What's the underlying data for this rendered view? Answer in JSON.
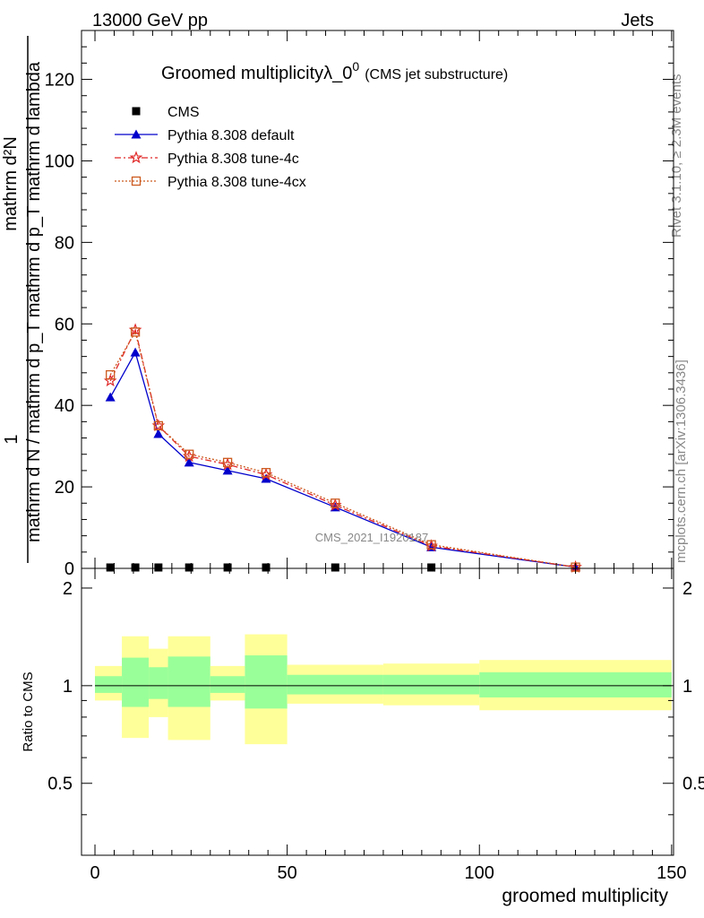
{
  "header": {
    "left": "13000 GeV pp",
    "right": "Jets"
  },
  "side_labels": {
    "rivet": "Rivet 3.1.10, ≥ 2.3M events",
    "mcplots": "mcplots.cern.ch [arXiv:1306.3436]"
  },
  "watermark": "CMS_2021_I1920187",
  "chart_data": [
    {
      "type": "line",
      "title": "Groomed multiplicityλ_0",
      "title_sup": "0",
      "subtitle": "(CMS jet substructure)",
      "ylabel_top": "1",
      "ylabel_den": "mathrm d N / mathrm d p_T mathrm d p_T mathrm d lambda",
      "ylabel_num": "mathrm d²N",
      "ylim": [
        0,
        132
      ],
      "xlim": [
        -3.5,
        150.5
      ],
      "yticks": [
        0,
        20,
        40,
        60,
        80,
        100,
        120
      ],
      "series": [
        {
          "name": "CMS",
          "color": "#000000",
          "marker": "square",
          "x": [
            4,
            10.5,
            16.5,
            24.5,
            34.5,
            44.5,
            62.5,
            87.5
          ],
          "y": [
            0.2,
            0.2,
            0.2,
            0.2,
            0.2,
            0.2,
            0.2,
            0.2
          ]
        },
        {
          "name": "Pythia 8.308 default",
          "color": "#0000cc",
          "marker": "triangle",
          "x": [
            4,
            10.5,
            16.5,
            24.5,
            34.5,
            44.5,
            62.5,
            87.5,
            125
          ],
          "y": [
            42,
            53,
            33,
            26,
            24,
            22,
            15,
            5.2,
            0.3
          ]
        },
        {
          "name": "Pythia 8.308 tune-4c",
          "color": "#e02828",
          "marker": "star",
          "x": [
            4,
            10.5,
            16.5,
            24.5,
            34.5,
            44.5,
            62.5,
            87.5,
            125
          ],
          "y": [
            46,
            58.5,
            35,
            27.5,
            25.5,
            23,
            15.5,
            5.5,
            0.3
          ]
        },
        {
          "name": "Pythia 8.308 tune-4cx",
          "color": "#cc5a1e",
          "marker": "open-square",
          "x": [
            4,
            10.5,
            16.5,
            24.5,
            34.5,
            44.5,
            62.5,
            87.5,
            125
          ],
          "y": [
            47.5,
            58,
            35,
            28,
            26,
            23.5,
            16,
            5.8,
            0.3
          ]
        }
      ]
    },
    {
      "type": "area",
      "ylabel": "Ratio to CMS",
      "xlabel": "groomed multiplicity",
      "ylim": [
        0.3,
        2.3
      ],
      "xlim": [
        -3.5,
        150.5
      ],
      "xticks": [
        0,
        50,
        100,
        150
      ],
      "yticks": [
        0.5,
        1,
        2
      ],
      "bands": {
        "bins": [
          [
            0,
            7
          ],
          [
            7,
            14
          ],
          [
            14,
            19
          ],
          [
            19,
            30
          ],
          [
            30,
            39
          ],
          [
            39,
            50
          ],
          [
            50,
            75
          ],
          [
            75,
            100
          ],
          [
            100,
            150
          ]
        ],
        "outer_color": "#ffff99",
        "inner_color": "#99ff99",
        "outer": [
          [
            0.9,
            1.15
          ],
          [
            0.69,
            1.42
          ],
          [
            0.8,
            1.3
          ],
          [
            0.68,
            1.42
          ],
          [
            0.9,
            1.15
          ],
          [
            0.66,
            1.44
          ],
          [
            0.88,
            1.16
          ],
          [
            0.87,
            1.17
          ],
          [
            0.84,
            1.2
          ]
        ],
        "inner": [
          [
            0.95,
            1.07
          ],
          [
            0.86,
            1.22
          ],
          [
            0.91,
            1.14
          ],
          [
            0.86,
            1.23
          ],
          [
            0.95,
            1.07
          ],
          [
            0.85,
            1.24
          ],
          [
            0.94,
            1.08
          ],
          [
            0.94,
            1.08
          ],
          [
            0.92,
            1.1
          ]
        ]
      },
      "reference": 1
    }
  ]
}
